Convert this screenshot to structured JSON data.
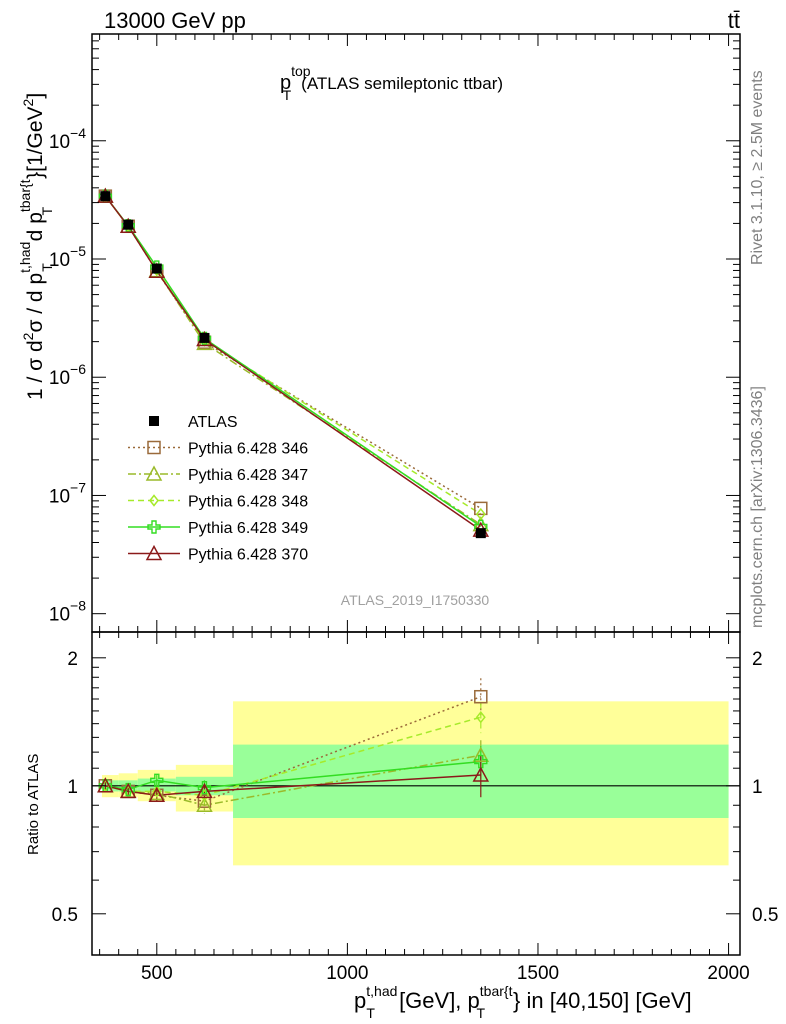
{
  "header": {
    "energy_label": "13000 GeV pp",
    "process_label": "tt̄",
    "title_main": "p",
    "title_sup": "top",
    "title_sub": "T",
    "title_rest": "(ATLAS semileptonic ttbar)",
    "side_rivet": "Rivet 3.1.10, ≥ 2.5M events",
    "side_mcplots": "mcplots.cern.ch [arXiv:1306.3436]",
    "analysis_id": "ATLAS_2019_I1750330"
  },
  "axes": {
    "ylabel_main": "1 / σ d²σ / d p_T^{t,had} d p_T^{tbar{t}} [1/GeV²]",
    "ylabel_ratio": "Ratio to ATLAS",
    "xlabel": "p_T^{t,had} [GeV], p_T^{tbar{t}} in [40,150] [GeV]",
    "x_ticks": [
      "500",
      "1000",
      "1500",
      "2000"
    ],
    "y_ticks_main": [
      "10",
      "10",
      "10",
      "10",
      "10"
    ],
    "y_ticks_main_exp": [
      "−4",
      "−5",
      "−6",
      "−7",
      "−8"
    ],
    "y_ticks_ratio": [
      "2",
      "1",
      "0.5"
    ]
  },
  "legend": {
    "entries": [
      "ATLAS",
      "Pythia 6.428 346",
      "Pythia 6.428 347",
      "Pythia 6.428 348",
      "Pythia 6.428 349",
      "Pythia 6.428 370"
    ]
  },
  "chart_data": {
    "type": "line",
    "xlim": [
      330,
      2030
    ],
    "ylim_main": [
      7e-09,
      0.0008
    ],
    "ylog_main": true,
    "ylim_ratio": [
      0.4,
      2.3
    ],
    "ylog_ratio": true,
    "bins": [
      [
        330,
        400
      ],
      [
        400,
        450
      ],
      [
        450,
        550
      ],
      [
        550,
        700
      ],
      [
        700,
        2000
      ]
    ],
    "x": [
      365,
      425,
      500,
      625,
      1350
    ],
    "data": {
      "name": "ATLAS",
      "values": [
        3.4e-05,
        1.95e-05,
        8.3e-06,
        2.15e-06,
        4.8e-08
      ],
      "band_inner": [
        [
          0.97,
          1.03
        ],
        [
          0.97,
          1.03
        ],
        [
          0.97,
          1.04
        ],
        [
          0.95,
          1.05
        ],
        [
          0.84,
          1.25
        ]
      ],
      "band_outer": [
        [
          0.94,
          1.06
        ],
        [
          0.94,
          1.07
        ],
        [
          0.92,
          1.09
        ],
        [
          0.87,
          1.12
        ],
        [
          0.65,
          1.58
        ]
      ]
    },
    "series": [
      {
        "name": "Pythia 6.428 346",
        "color": "#9a6a3a",
        "marker": "square",
        "dash": "2,3",
        "ratio": [
          1.0,
          0.97,
          0.95,
          0.92,
          1.62
        ],
        "err": [
          0.02,
          0.02,
          0.03,
          0.04,
          0.17
        ]
      },
      {
        "name": "Pythia 6.428 347",
        "color": "#9aba2a",
        "marker": "triangle",
        "dash": "8,3,2,3",
        "ratio": [
          1.0,
          0.97,
          0.96,
          0.9,
          1.18
        ],
        "err": [
          0.02,
          0.02,
          0.03,
          0.04,
          0.1
        ]
      },
      {
        "name": "Pythia 6.428 348",
        "color": "#a6ea2a",
        "marker": "diamond",
        "dash": "6,4",
        "ratio": [
          1.0,
          0.97,
          0.97,
          0.95,
          1.45
        ],
        "err": [
          0.02,
          0.02,
          0.03,
          0.04,
          0.12
        ]
      },
      {
        "name": "Pythia 6.428 349",
        "color": "#33dd22",
        "marker": "cross",
        "dash": "",
        "ratio": [
          1.0,
          0.98,
          1.03,
          0.99,
          1.14
        ],
        "err": [
          0.02,
          0.02,
          0.03,
          0.04,
          0.1
        ]
      },
      {
        "name": "Pythia 6.428 370",
        "color": "#8b1a1a",
        "marker": "triangle",
        "dash": "",
        "ratio": [
          1.0,
          0.97,
          0.95,
          0.97,
          1.06
        ],
        "err": [
          0.02,
          0.02,
          0.03,
          0.04,
          0.12
        ]
      }
    ],
    "colors": {
      "band_outer": "#ffff99",
      "band_inner": "#99ff99",
      "data": "#000000"
    }
  }
}
